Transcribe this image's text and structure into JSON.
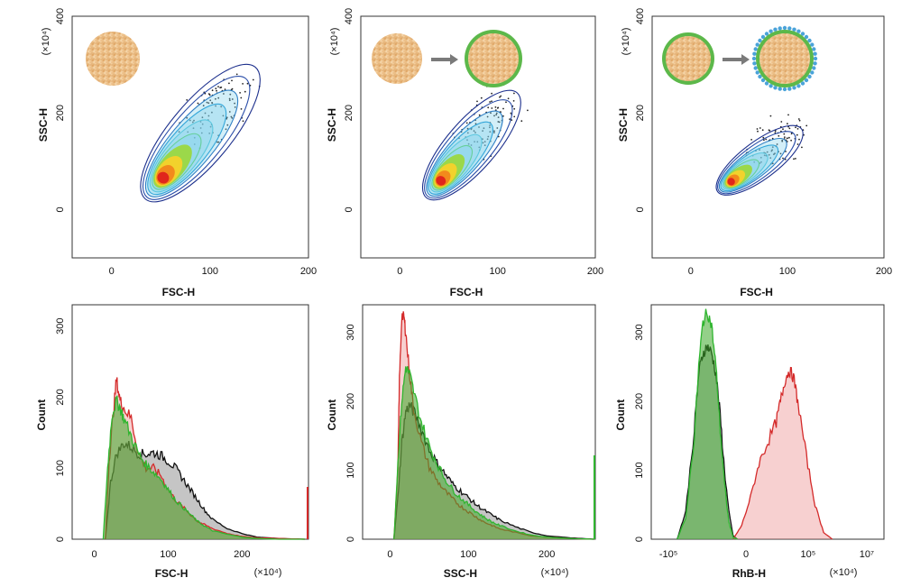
{
  "colors": {
    "red": "#d42a2a",
    "green": "#2fb52f",
    "black": "#111111",
    "contour_outer": "#1c2f8c",
    "contour_mid": "#33a6d9",
    "contour_warm": "#f2d22c"
  },
  "chart_data": [
    {
      "type": "scatter",
      "panel": "top-left",
      "xlabel": "FSC-H",
      "ylabel": "SSC-H",
      "y_unit": "(×10⁴)",
      "xlim": [
        -40,
        200
      ],
      "ylim": [
        -100,
        400
      ],
      "xticks": [
        "0",
        "100",
        "200"
      ],
      "yticks": [
        "0",
        "200",
        "400"
      ],
      "yticks_values": [
        0,
        200,
        400
      ],
      "xticks_values": [
        0,
        100,
        200
      ],
      "icons": [
        "particle-core"
      ],
      "density_peak": {
        "x": 50,
        "y": 60
      },
      "contour_extent": {
        "x": [
          25,
          140
        ],
        "y": [
          30,
          280
        ]
      }
    },
    {
      "type": "scatter",
      "panel": "top-middle",
      "xlabel": "FSC-H",
      "ylabel": "SSC-H",
      "y_unit": "(×10⁴)",
      "xlim": [
        -40,
        200
      ],
      "ylim": [
        -100,
        400
      ],
      "xticks": [
        "0",
        "100",
        "200"
      ],
      "yticks": [
        "0",
        "200",
        "400"
      ],
      "yticks_values": [
        0,
        200,
        400
      ],
      "xticks_values": [
        0,
        100,
        200
      ],
      "icons": [
        "particle-core",
        "arrow",
        "coated-particle"
      ],
      "density_peak": {
        "x": 40,
        "y": 55
      },
      "contour_extent": {
        "x": [
          15,
          115
        ],
        "y": [
          20,
          230
        ]
      }
    },
    {
      "type": "scatter",
      "panel": "top-right",
      "xlabel": "FSC-H",
      "ylabel": "SSC-H",
      "y_unit": "(×10⁴)",
      "xlim": [
        -40,
        200
      ],
      "ylim": [
        -100,
        400
      ],
      "xticks": [
        "0",
        "100",
        "200"
      ],
      "yticks": [
        "0",
        "200",
        "400"
      ],
      "yticks_values": [
        0,
        200,
        400
      ],
      "xticks_values": [
        0,
        100,
        200
      ],
      "icons": [
        "coated-particle",
        "arrow",
        "decorated-particle"
      ],
      "density_peak": {
        "x": 40,
        "y": 55
      },
      "contour_extent": {
        "x": [
          25,
          110
        ],
        "y": [
          30,
          160
        ]
      }
    },
    {
      "type": "histogram",
      "panel": "bottom-left",
      "xlabel": "FSC-H",
      "ylabel": "Count",
      "x_unit": "(×10⁴)",
      "xlim": [
        -30,
        290
      ],
      "ylim": [
        0,
        330
      ],
      "xticks": [
        "0",
        "100",
        "200"
      ],
      "xticks_values": [
        0,
        100,
        200
      ],
      "yticks": [
        "0",
        "100",
        "200",
        "300"
      ],
      "yticks_values": [
        0,
        100,
        200,
        300
      ],
      "series": [
        {
          "name": "black",
          "color": "black",
          "x": [
            15,
            22,
            30,
            40,
            50,
            60,
            70,
            80,
            90,
            100,
            110,
            120,
            130,
            140,
            150,
            160,
            180,
            200,
            220,
            250,
            285
          ],
          "values": [
            0,
            80,
            120,
            135,
            130,
            120,
            120,
            122,
            118,
            110,
            100,
            85,
            70,
            55,
            40,
            28,
            15,
            8,
            3,
            1,
            0
          ]
        },
        {
          "name": "red",
          "color": "red",
          "x": [
            15,
            20,
            25,
            30,
            35,
            40,
            50,
            60,
            70,
            80,
            90,
            100,
            110,
            120,
            130,
            140,
            150,
            160,
            180,
            200,
            220,
            250,
            285
          ],
          "values": [
            0,
            110,
            170,
            225,
            195,
            185,
            170,
            120,
            100,
            100,
            90,
            70,
            55,
            45,
            35,
            25,
            20,
            15,
            8,
            4,
            2,
            1,
            0
          ]
        },
        {
          "name": "green",
          "color": "green",
          "x": [
            12,
            18,
            24,
            30,
            35,
            40,
            50,
            60,
            70,
            80,
            90,
            100,
            110,
            120,
            130,
            140,
            150,
            160,
            180,
            200,
            220,
            250,
            285
          ],
          "values": [
            0,
            100,
            175,
            195,
            185,
            170,
            145,
            120,
            105,
            95,
            85,
            70,
            55,
            45,
            35,
            25,
            18,
            12,
            7,
            3,
            1,
            0,
            0
          ]
        }
      ]
    },
    {
      "type": "histogram",
      "panel": "bottom-middle",
      "xlabel": "SSC-H",
      "ylabel": "Count",
      "x_unit": "(×10⁴)",
      "xlim": [
        -35,
        262
      ],
      "ylim": [
        0,
        340
      ],
      "xticks": [
        "0",
        "100",
        "200"
      ],
      "xticks_values": [
        0,
        100,
        200
      ],
      "yticks": [
        "0",
        "100",
        "200",
        "300"
      ],
      "yticks_values": [
        0,
        100,
        200,
        300
      ],
      "series": [
        {
          "name": "black",
          "color": "black",
          "x": [
            5,
            10,
            15,
            20,
            25,
            30,
            40,
            50,
            60,
            70,
            80,
            90,
            100,
            110,
            120,
            130,
            140,
            160,
            180,
            200,
            230,
            260
          ],
          "values": [
            0,
            60,
            140,
            185,
            195,
            185,
            160,
            130,
            110,
            95,
            80,
            70,
            60,
            50,
            42,
            35,
            28,
            18,
            10,
            5,
            2,
            0
          ]
        },
        {
          "name": "red",
          "color": "red",
          "x": [
            5,
            10,
            12,
            15,
            18,
            20,
            25,
            30,
            40,
            50,
            60,
            70,
            80,
            90,
            100,
            110,
            120,
            130,
            140,
            160,
            180,
            200,
            230,
            260
          ],
          "values": [
            0,
            100,
            230,
            325,
            320,
            300,
            240,
            190,
            140,
            105,
            85,
            70,
            58,
            48,
            40,
            32,
            25,
            20,
            15,
            10,
            5,
            3,
            1,
            0
          ]
        },
        {
          "name": "green",
          "color": "green",
          "x": [
            5,
            10,
            15,
            20,
            25,
            30,
            40,
            50,
            60,
            70,
            80,
            90,
            100,
            110,
            120,
            130,
            140,
            160,
            180,
            200,
            230,
            260
          ],
          "values": [
            0,
            110,
            200,
            250,
            240,
            215,
            170,
            135,
            110,
            88,
            72,
            60,
            50,
            40,
            32,
            25,
            20,
            12,
            6,
            3,
            1,
            0
          ]
        }
      ]
    },
    {
      "type": "histogram",
      "panel": "bottom-right",
      "xlabel": "RhB-H",
      "ylabel": "Count",
      "x_unit": "(×10⁴)",
      "xlim": [
        0,
        270
      ],
      "ylim": [
        0,
        340
      ],
      "xticks": [
        "-10⁵",
        "0",
        "10⁵",
        "10⁷"
      ],
      "xticks_values": [
        20,
        110,
        182,
        250
      ],
      "yticks": [
        "0",
        "100",
        "200",
        "300"
      ],
      "yticks_values": [
        0,
        100,
        200,
        300
      ],
      "series": [
        {
          "name": "black",
          "color": "black",
          "x": [
            30,
            40,
            50,
            55,
            60,
            65,
            70,
            75,
            80,
            85,
            90,
            95,
            100
          ],
          "values": [
            0,
            40,
            160,
            240,
            270,
            280,
            270,
            240,
            180,
            100,
            40,
            5,
            0
          ]
        },
        {
          "name": "green",
          "color": "green",
          "x": [
            30,
            40,
            50,
            55,
            60,
            65,
            70,
            75,
            80,
            85,
            90,
            95,
            100
          ],
          "values": [
            0,
            30,
            150,
            250,
            315,
            330,
            310,
            250,
            160,
            80,
            25,
            3,
            0
          ]
        },
        {
          "name": "red",
          "color": "red",
          "x": [
            95,
            105,
            115,
            125,
            135,
            145,
            150,
            155,
            160,
            165,
            170,
            180,
            190,
            200,
            210
          ],
          "values": [
            0,
            20,
            60,
            110,
            140,
            170,
            200,
            230,
            245,
            235,
            200,
            120,
            50,
            10,
            0
          ]
        }
      ]
    }
  ]
}
